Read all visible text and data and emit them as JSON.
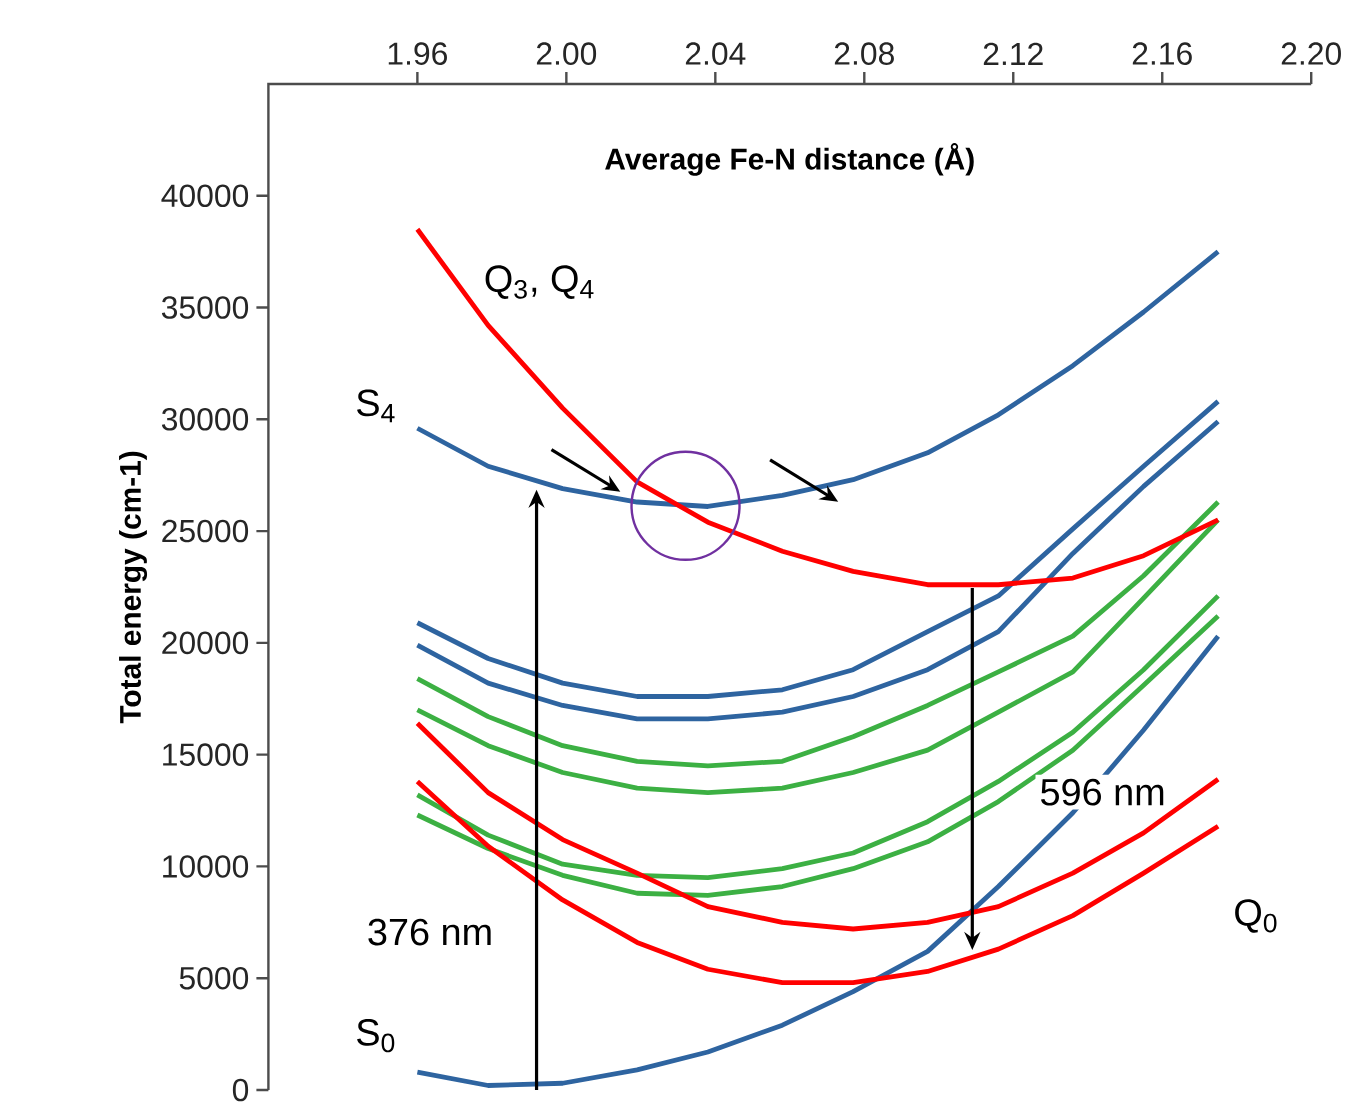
{
  "chart_data": {
    "type": "line",
    "xlabel": "Average Fe-N distance (Å)",
    "ylabel": "Total energy (cm-1)",
    "x": [
      1.96,
      1.979,
      1.999,
      2.019,
      2.038,
      2.058,
      2.077,
      2.097,
      2.116,
      2.136,
      2.155,
      2.175
    ],
    "xlim": [
      1.92,
      2.2
    ],
    "xticks": [
      1.96,
      {
        "value": 2.0,
        "label": "2.00"
      },
      2.04,
      2.08,
      2.12,
      2.16,
      {
        "value": 2.2,
        "label": "2.20"
      }
    ],
    "ylim": [
      0,
      45000
    ],
    "yticks": [
      0,
      5000,
      10000,
      15000,
      20000,
      25000,
      30000,
      35000,
      40000
    ],
    "series": [
      {
        "color": "#2e64a0",
        "values": [
          29600,
          27900,
          26900,
          26300,
          26100,
          26600,
          27300,
          28500,
          30200,
          32400,
          34800,
          37500
        ]
      },
      {
        "color": "#2e64a0",
        "values": [
          20900,
          19300,
          18200,
          17600,
          17600,
          17900,
          18800,
          20500,
          22100,
          25100,
          27900,
          30800
        ]
      },
      {
        "color": "#2e64a0",
        "values": [
          19900,
          18200,
          17200,
          16600,
          16600,
          16900,
          17600,
          18800,
          20500,
          24000,
          27000,
          29900
        ]
      },
      {
        "color": "#3cb043",
        "values": [
          18400,
          16700,
          15400,
          14700,
          14500,
          14700,
          15800,
          17200,
          18700,
          20300,
          23000,
          26300
        ]
      },
      {
        "color": "#3cb043",
        "values": [
          17000,
          15400,
          14200,
          13500,
          13300,
          13500,
          14200,
          15200,
          16900,
          18700,
          22000,
          25500
        ]
      },
      {
        "color": "#3cb043",
        "values": [
          13200,
          11400,
          10100,
          9600,
          9500,
          9900,
          10600,
          12000,
          13800,
          16000,
          18800,
          22100
        ]
      },
      {
        "color": "#3cb043",
        "values": [
          12300,
          10800,
          9600,
          8800,
          8700,
          9100,
          9900,
          11100,
          12900,
          15200,
          18100,
          21200
        ]
      },
      {
        "color": "#2e64a0",
        "values": [
          800,
          200,
          300,
          900,
          1700,
          2900,
          4400,
          6200,
          9100,
          12400,
          16100,
          20300
        ]
      },
      {
        "color": "#ff0000",
        "values": [
          16400,
          13300,
          11200,
          9700,
          8200,
          7500,
          7200,
          7500,
          8200,
          9700,
          11500,
          13900
        ]
      },
      {
        "color": "#ff0000",
        "values": [
          13800,
          10900,
          8500,
          6600,
          5400,
          4800,
          4800,
          5300,
          6300,
          7800,
          9700,
          11800
        ]
      },
      {
        "color": "#ff0000",
        "values": [
          38500,
          34200,
          30500,
          27200,
          25400,
          24100,
          23200,
          22600,
          22600,
          22900,
          23900,
          25500
        ]
      }
    ],
    "annotations": [
      "Q$_{3}$, Q$_{4}$",
      "S$_{4}$",
      "S$_{0}$",
      "Q$_{0}$",
      "376 nm",
      "596 nm"
    ]
  }
}
